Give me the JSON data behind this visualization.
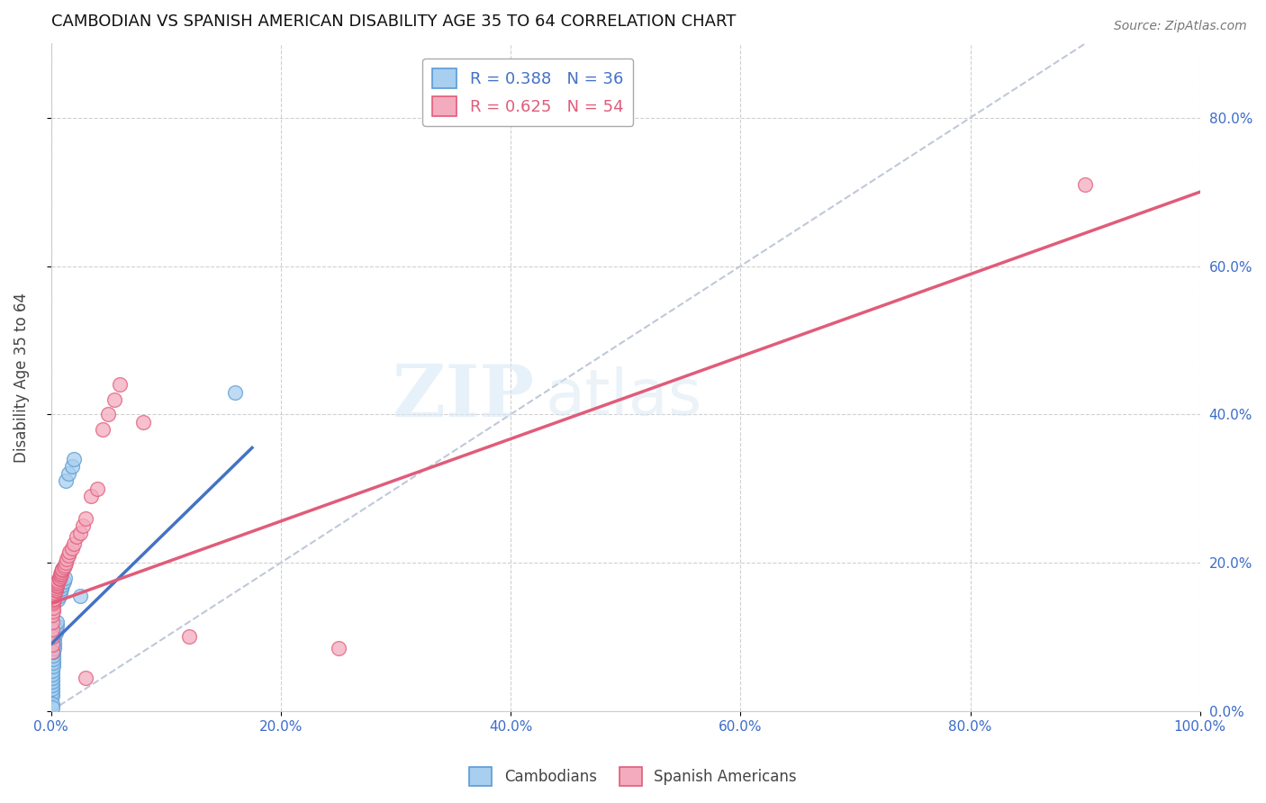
{
  "title": "CAMBODIAN VS SPANISH AMERICAN DISABILITY AGE 35 TO 64 CORRELATION CHART",
  "source": "Source: ZipAtlas.com",
  "ylabel": "Disability Age 35 to 64",
  "legend_cambodians": "Cambodians",
  "legend_spanish": "Spanish Americans",
  "legend_r_cambodian": "R = 0.388",
  "legend_n_cambodian": "N = 36",
  "legend_r_spanish": "R = 0.625",
  "legend_n_spanish": "N = 54",
  "xlim": [
    0,
    1.0
  ],
  "ylim": [
    0,
    0.9
  ],
  "xticks": [
    0.0,
    0.2,
    0.4,
    0.6,
    0.8,
    1.0
  ],
  "yticks": [
    0.0,
    0.2,
    0.4,
    0.6,
    0.8
  ],
  "xtick_labels": [
    "0.0%",
    "20.0%",
    "40.0%",
    "60.0%",
    "80.0%",
    "100.0%"
  ],
  "ytick_labels_right": [
    "0.0%",
    "20.0%",
    "40.0%",
    "60.0%",
    "80.0%"
  ],
  "color_cambodian_fill": "#A8CFEF",
  "color_cambodian_edge": "#5B9BD5",
  "color_spanish_fill": "#F4ABBE",
  "color_spanish_edge": "#E05C7A",
  "color_trend_cambodian": "#4472C4",
  "color_trend_spanish": "#E05C7A",
  "color_diag": "#B0BBD0",
  "watermark_zip": "ZIP",
  "watermark_atlas": "atlas",
  "cambodian_x": [
    0.001,
    0.001,
    0.001,
    0.001,
    0.001,
    0.001,
    0.001,
    0.001,
    0.002,
    0.002,
    0.002,
    0.002,
    0.002,
    0.003,
    0.003,
    0.003,
    0.003,
    0.004,
    0.004,
    0.005,
    0.005,
    0.006,
    0.007,
    0.008,
    0.009,
    0.01,
    0.011,
    0.012,
    0.013,
    0.015,
    0.018,
    0.02,
    0.025,
    0.16,
    0.001,
    0.001
  ],
  "cambodian_y": [
    0.02,
    0.025,
    0.03,
    0.035,
    0.04,
    0.045,
    0.05,
    0.055,
    0.06,
    0.065,
    0.07,
    0.075,
    0.08,
    0.085,
    0.09,
    0.095,
    0.1,
    0.105,
    0.11,
    0.115,
    0.12,
    0.15,
    0.155,
    0.16,
    0.165,
    0.17,
    0.175,
    0.18,
    0.31,
    0.32,
    0.33,
    0.34,
    0.155,
    0.43,
    0.01,
    0.005
  ],
  "spanish_x": [
    0.001,
    0.001,
    0.001,
    0.001,
    0.001,
    0.001,
    0.002,
    0.002,
    0.002,
    0.002,
    0.002,
    0.003,
    0.003,
    0.003,
    0.003,
    0.004,
    0.004,
    0.004,
    0.005,
    0.005,
    0.005,
    0.006,
    0.006,
    0.007,
    0.007,
    0.008,
    0.008,
    0.009,
    0.009,
    0.01,
    0.01,
    0.011,
    0.012,
    0.013,
    0.014,
    0.015,
    0.016,
    0.018,
    0.02,
    0.022,
    0.025,
    0.028,
    0.03,
    0.035,
    0.04,
    0.045,
    0.05,
    0.055,
    0.06,
    0.08,
    0.12,
    0.25,
    0.9,
    0.03
  ],
  "spanish_y": [
    0.08,
    0.09,
    0.1,
    0.11,
    0.12,
    0.13,
    0.135,
    0.14,
    0.145,
    0.148,
    0.15,
    0.152,
    0.155,
    0.158,
    0.16,
    0.162,
    0.164,
    0.166,
    0.168,
    0.17,
    0.172,
    0.174,
    0.176,
    0.178,
    0.18,
    0.182,
    0.184,
    0.186,
    0.188,
    0.19,
    0.192,
    0.194,
    0.196,
    0.2,
    0.205,
    0.21,
    0.215,
    0.22,
    0.225,
    0.235,
    0.24,
    0.25,
    0.26,
    0.29,
    0.3,
    0.38,
    0.4,
    0.42,
    0.44,
    0.39,
    0.1,
    0.085,
    0.71,
    0.045
  ],
  "trend_cambodian_x0": 0.0,
  "trend_cambodian_x1": 0.175,
  "trend_spanish_x0": 0.0,
  "trend_spanish_x1": 1.0,
  "trend_spanish_y0": 0.145,
  "trend_spanish_y1": 0.7,
  "trend_cambodian_y0": 0.09,
  "trend_cambodian_y1": 0.355
}
